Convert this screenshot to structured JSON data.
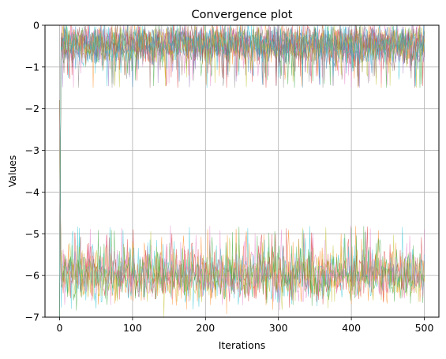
{
  "chart_data": {
    "type": "line",
    "title": "Convergence plot",
    "xlabel": "Iterations",
    "ylabel": "Values",
    "xlim": [
      -20,
      520
    ],
    "ylim": [
      -7,
      0
    ],
    "xticks": [
      0,
      100,
      200,
      300,
      400,
      500
    ],
    "yticks": [
      0,
      -1,
      -2,
      -3,
      -4,
      -5,
      -6,
      -7
    ],
    "xtick_labels": [
      "0",
      "100",
      "200",
      "300",
      "400",
      "500"
    ],
    "ytick_labels": [
      "0",
      "−1",
      "−2",
      "−3",
      "−4",
      "−5",
      "−6",
      "−7"
    ],
    "grid": true,
    "legend": "none",
    "iterations": [
      0,
      500
    ],
    "upper_group": {
      "start_value": -7,
      "mean": -0.45,
      "spread": 0.35,
      "max": 0,
      "min": -1.5,
      "colors": [
        "#1f77b4",
        "#ff7f0e",
        "#2ca02c",
        "#d62728",
        "#9467bd",
        "#8c564b",
        "#e377c2",
        "#7f7f7f",
        "#bcbd22",
        "#17becf"
      ]
    },
    "lower_group": {
      "start_value": -1.8,
      "mean": -6.0,
      "spread": 0.45,
      "max": -4.8,
      "min": -7.0,
      "colors": [
        "#ff7f0e",
        "#d62728",
        "#17becf",
        "#bcbd22",
        "#2ca02c",
        "#e377c2"
      ]
    }
  }
}
